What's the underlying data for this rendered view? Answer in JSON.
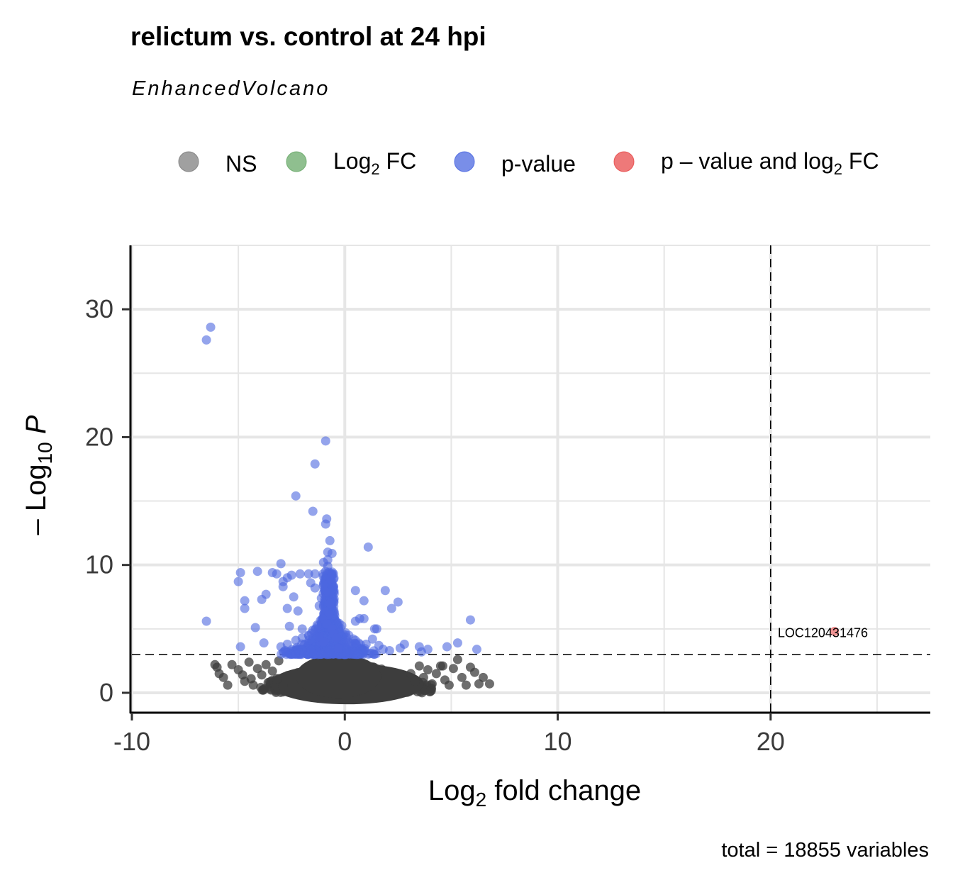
{
  "chart_data": {
    "type": "scatter",
    "title": "relictum vs. control at 24 hpi",
    "subtitle": "EnhancedVolcano",
    "caption": "total = 18855 variables",
    "xlabel": {
      "main": "Log",
      "sub": "2",
      "rest": " fold change"
    },
    "ylabel": {
      "pre": "– Log",
      "sub": "10",
      "italic": "P"
    },
    "xlim": [
      -10,
      27.5
    ],
    "ylim": [
      -1.5,
      35
    ],
    "x_ticks": [
      -10,
      0,
      10,
      20
    ],
    "y_ticks": [
      0,
      10,
      20,
      30
    ],
    "x_tick_labels": [
      "-10",
      "0",
      "10",
      "20"
    ],
    "y_tick_labels": [
      "0",
      "10",
      "20",
      "30"
    ],
    "grid": true,
    "legend_position": "top",
    "cutoffs": {
      "log2fc": 20,
      "neg_log10_p": 3
    },
    "colors": {
      "NS": "#808080",
      "Log2FC": "#6aaa6a",
      "pvalue": "#4c68e0",
      "both": "#e84c4c"
    },
    "legend": [
      {
        "key": "NS",
        "label": "NS",
        "color": "#808080"
      },
      {
        "key": "Log2FC",
        "label": "Log",
        "sub": "2",
        "rest": " FC",
        "color": "#6aaa6a"
      },
      {
        "key": "pvalue",
        "label": "p-value",
        "color": "#4c68e0"
      },
      {
        "key": "both",
        "label": "p – value and log",
        "sub": "2",
        "rest": " FC",
        "color": "#e84c4c"
      }
    ],
    "series": [
      {
        "key": "pvalue",
        "points": [
          [
            -6.5,
            27.6
          ],
          [
            -6.3,
            28.6
          ],
          [
            -0.9,
            19.7
          ],
          [
            -1.4,
            17.9
          ],
          [
            -2.3,
            15.4
          ],
          [
            -1.5,
            14.2
          ],
          [
            -0.9,
            13.2
          ],
          [
            -0.85,
            13.6
          ],
          [
            -0.7,
            11.9
          ],
          [
            1.1,
            11.4
          ],
          [
            -0.8,
            11.0
          ],
          [
            -0.6,
            10.9
          ],
          [
            -3.0,
            10.1
          ],
          [
            -4.1,
            9.5
          ],
          [
            -4.9,
            9.4
          ],
          [
            -3.4,
            9.4
          ],
          [
            -2.5,
            9.2
          ],
          [
            -2.7,
            9.0
          ],
          [
            -3.2,
            9.3
          ],
          [
            -2.1,
            9.3
          ],
          [
            -5.0,
            8.7
          ],
          [
            -2.9,
            8.7
          ],
          [
            -1.7,
            9.3
          ],
          [
            -1.4,
            9.3
          ],
          [
            -0.8,
            9.9
          ],
          [
            -3.7,
            7.7
          ],
          [
            -2.9,
            8.3
          ],
          [
            -1.6,
            8.6
          ],
          [
            0.5,
            8.0
          ],
          [
            1.9,
            8.0
          ],
          [
            -3.9,
            7.3
          ],
          [
            -4.7,
            7.2
          ],
          [
            -2.4,
            7.5
          ],
          [
            -1.4,
            8.2
          ],
          [
            0.9,
            7.2
          ],
          [
            2.5,
            7.1
          ],
          [
            -4.7,
            6.6
          ],
          [
            -2.7,
            6.6
          ],
          [
            -2.2,
            6.4
          ],
          [
            2.2,
            6.6
          ],
          [
            -6.5,
            5.6
          ],
          [
            5.9,
            5.7
          ],
          [
            0.7,
            5.8
          ],
          [
            0.9,
            5.8
          ],
          [
            0.5,
            5.6
          ],
          [
            -4.2,
            5.1
          ],
          [
            -2.6,
            5.2
          ],
          [
            1.4,
            5.0
          ],
          [
            -2.0,
            5.0
          ],
          [
            1.5,
            5.0
          ],
          [
            5.3,
            3.9
          ],
          [
            4.8,
            3.6
          ],
          [
            6.2,
            3.4
          ],
          [
            3.9,
            3.4
          ],
          [
            3.5,
            3.6
          ],
          [
            -3.8,
            3.9
          ],
          [
            -4.9,
            3.6
          ],
          [
            2.8,
            3.8
          ],
          [
            2.6,
            3.5
          ],
          [
            3.6,
            3.2
          ],
          [
            -1.0,
            8.5
          ],
          [
            -0.9,
            7.9
          ],
          [
            -1.1,
            7.4
          ],
          [
            -0.7,
            7.0
          ],
          [
            -1.2,
            6.8
          ],
          [
            -0.95,
            6.3
          ],
          [
            -0.75,
            6.1
          ],
          [
            -1.05,
            5.8
          ],
          [
            -0.85,
            5.4
          ],
          [
            -1.3,
            5.3
          ],
          [
            -0.6,
            5.0
          ],
          [
            -1.5,
            4.9
          ],
          [
            -0.5,
            4.6
          ],
          [
            -1.7,
            4.5
          ],
          [
            -2.0,
            4.3
          ],
          [
            -0.4,
            4.3
          ],
          [
            -2.3,
            4.1
          ],
          [
            -1.0,
            4.0
          ],
          [
            0.2,
            3.9
          ],
          [
            0.5,
            4.1
          ],
          [
            1.0,
            3.8
          ],
          [
            1.3,
            4.2
          ],
          [
            1.6,
            3.7
          ],
          [
            1.8,
            3.4
          ],
          [
            2.1,
            3.3
          ],
          [
            -2.7,
            3.8
          ],
          [
            -3.0,
            3.6
          ],
          [
            -2.8,
            3.3
          ],
          [
            -1.2,
            4.4
          ],
          [
            -0.3,
            3.5
          ],
          [
            -0.7,
            8.9
          ],
          [
            -0.9,
            9.5
          ],
          [
            -0.6,
            9.3
          ],
          [
            -0.8,
            10.4
          ],
          [
            -1.0,
            10.2
          ]
        ]
      },
      {
        "key": "NS",
        "points": [
          [
            -6.1,
            2.2
          ],
          [
            -5.9,
            1.5
          ],
          [
            -6.0,
            2.0
          ],
          [
            -5.7,
            1.2
          ],
          [
            -5.5,
            0.6
          ],
          [
            -5.3,
            2.2
          ],
          [
            -5.0,
            1.8
          ],
          [
            -4.8,
            1.4
          ],
          [
            -4.7,
            0.9
          ],
          [
            -4.5,
            2.4
          ],
          [
            -4.4,
            1.1
          ],
          [
            -4.3,
            0.6
          ],
          [
            -4.1,
            1.9
          ],
          [
            -3.9,
            1.4
          ],
          [
            -3.7,
            2.2
          ],
          [
            -3.6,
            0.8
          ],
          [
            -3.4,
            1.7
          ],
          [
            -3.2,
            1.1
          ],
          [
            -3.1,
            2.5
          ],
          [
            -2.9,
            0.5
          ],
          [
            3.1,
            1.5
          ],
          [
            3.3,
            0.9
          ],
          [
            3.5,
            2.1
          ],
          [
            3.7,
            1.2
          ],
          [
            3.9,
            1.8
          ],
          [
            4.1,
            0.7
          ],
          [
            4.3,
            1.5
          ],
          [
            4.5,
            2.1
          ],
          [
            4.7,
            1.0
          ],
          [
            4.9,
            0.6
          ],
          [
            5.1,
            1.9
          ],
          [
            5.3,
            2.6
          ],
          [
            5.5,
            1.2
          ],
          [
            5.7,
            0.6
          ],
          [
            5.9,
            2.0
          ],
          [
            6.1,
            1.6
          ],
          [
            6.3,
            0.7
          ],
          [
            6.5,
            1.2
          ],
          [
            6.8,
            0.7
          ],
          [
            4.6,
            2.1
          ]
        ]
      },
      {
        "key": "both",
        "points": [
          [
            23.0,
            4.8
          ]
        ],
        "labels": [
          "LOC120431476"
        ]
      }
    ]
  }
}
